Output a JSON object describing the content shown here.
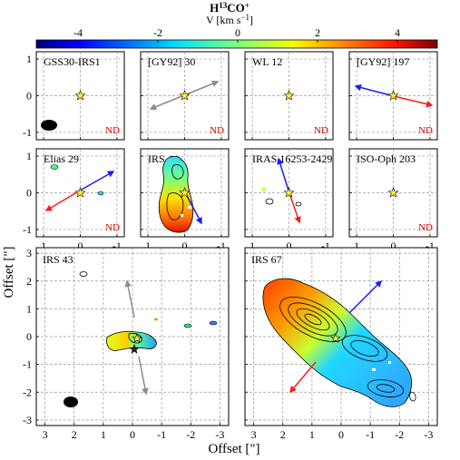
{
  "colorbar": {
    "title": "H",
    "title_sup": "13",
    "title_rest": "CO",
    "title_plus": "+",
    "unit_label": "V [km s",
    "unit_sup": "−1",
    "unit_close": "]",
    "ticks": [
      "-4",
      "-2",
      "0",
      "2",
      "4"
    ]
  },
  "axes": {
    "ylabel": "Offset [\"]",
    "xlabel": "Offset [\"]"
  },
  "nd_label": "ND",
  "small_tick_labels": {
    "x": [
      "1",
      "0",
      "-1"
    ],
    "y": [
      "1",
      "0",
      "-1"
    ]
  },
  "big_tick_labels": {
    "x": [
      "3",
      "2",
      "1",
      "0",
      "-1",
      "-2",
      "-3"
    ],
    "y": [
      "3",
      "2",
      "1",
      "0",
      "-1",
      "-2",
      "-3"
    ]
  },
  "panels": [
    {
      "name": "GSS30-IRS1",
      "nd": true
    },
    {
      "name": "[GY92] 30",
      "nd": true
    },
    {
      "name": "WL 12",
      "nd": true
    },
    {
      "name": "[GY92] 197",
      "nd": true
    },
    {
      "name": "Elias 29",
      "nd": true
    },
    {
      "name": "IRS 44",
      "nd": false
    },
    {
      "name": "IRAS 16253-2429",
      "nd": false
    },
    {
      "name": "ISO-Oph 203",
      "nd": true
    },
    {
      "name": "IRS 43",
      "nd": false
    },
    {
      "name": "IRS 67",
      "nd": false
    }
  ],
  "chart_data": {
    "type": "heatmap",
    "title": "H13CO+",
    "colorbar_label": "V [km s-1]",
    "colorbar_range": [
      -5,
      5
    ],
    "small_panel_xlim": [
      1.2,
      -1.2
    ],
    "small_panel_ylim": [
      -1.2,
      1.2
    ],
    "big_panel_xlim": [
      3.3,
      -3.3
    ],
    "big_panel_ylim": [
      -3.2,
      3.2
    ],
    "nd_panels": [
      "GSS30-IRS1",
      "[GY92] 30",
      "WL 12",
      "[GY92] 197",
      "Elias 29",
      "ISO-Oph 203"
    ],
    "detected_panels": [
      "IRS 44",
      "IRAS 16253-2429",
      "IRS 43",
      "IRS 67"
    ]
  }
}
